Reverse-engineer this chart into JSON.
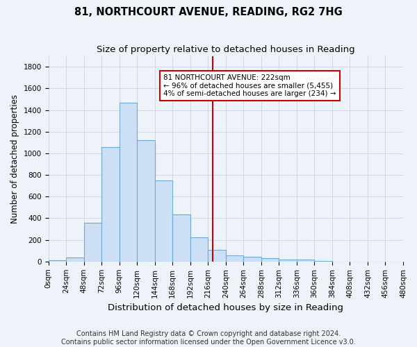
{
  "title": "81, NORTHCOURT AVENUE, READING, RG2 7HG",
  "subtitle": "Size of property relative to detached houses in Reading",
  "xlabel": "Distribution of detached houses by size in Reading",
  "ylabel": "Number of detached properties",
  "footer_line1": "Contains HM Land Registry data © Crown copyright and database right 2024.",
  "footer_line2": "Contains public sector information licensed under the Open Government Licence v3.0.",
  "bin_labels": [
    "0sqm",
    "24sqm",
    "48sqm",
    "72sqm",
    "96sqm",
    "120sqm",
    "144sqm",
    "168sqm",
    "192sqm",
    "216sqm",
    "240sqm",
    "264sqm",
    "288sqm",
    "312sqm",
    "336sqm",
    "360sqm",
    "384sqm",
    "408sqm",
    "432sqm",
    "456sqm",
    "480sqm"
  ],
  "bin_edges": [
    0,
    24,
    48,
    72,
    96,
    120,
    144,
    168,
    192,
    216,
    240,
    264,
    288,
    312,
    336,
    360,
    384,
    408,
    432,
    456,
    480
  ],
  "bar_heights": [
    10,
    35,
    360,
    1060,
    1470,
    1120,
    750,
    435,
    225,
    110,
    55,
    45,
    30,
    20,
    20,
    5,
    0,
    0,
    0,
    0
  ],
  "bar_color": "#ccdff5",
  "bar_edge_color": "#6aaad4",
  "grid_color": "#d0d8e8",
  "property_line_x": 222,
  "property_line_color": "#cc0000",
  "annotation_text": "81 NORTHCOURT AVENUE: 222sqm\n← 96% of detached houses are smaller (5,455)\n4% of semi-detached houses are larger (234) →",
  "annotation_box_color": "#ffffff",
  "annotation_box_edge": "#cc0000",
  "ylim": [
    0,
    1900
  ],
  "yticks": [
    0,
    200,
    400,
    600,
    800,
    1000,
    1200,
    1400,
    1600,
    1800
  ],
  "title_fontsize": 10.5,
  "subtitle_fontsize": 9.5,
  "xlabel_fontsize": 9.5,
  "ylabel_fontsize": 8.5,
  "tick_fontsize": 7.5,
  "annotation_fontsize": 7.5,
  "footer_fontsize": 7.0,
  "background_color": "#eef2f9"
}
